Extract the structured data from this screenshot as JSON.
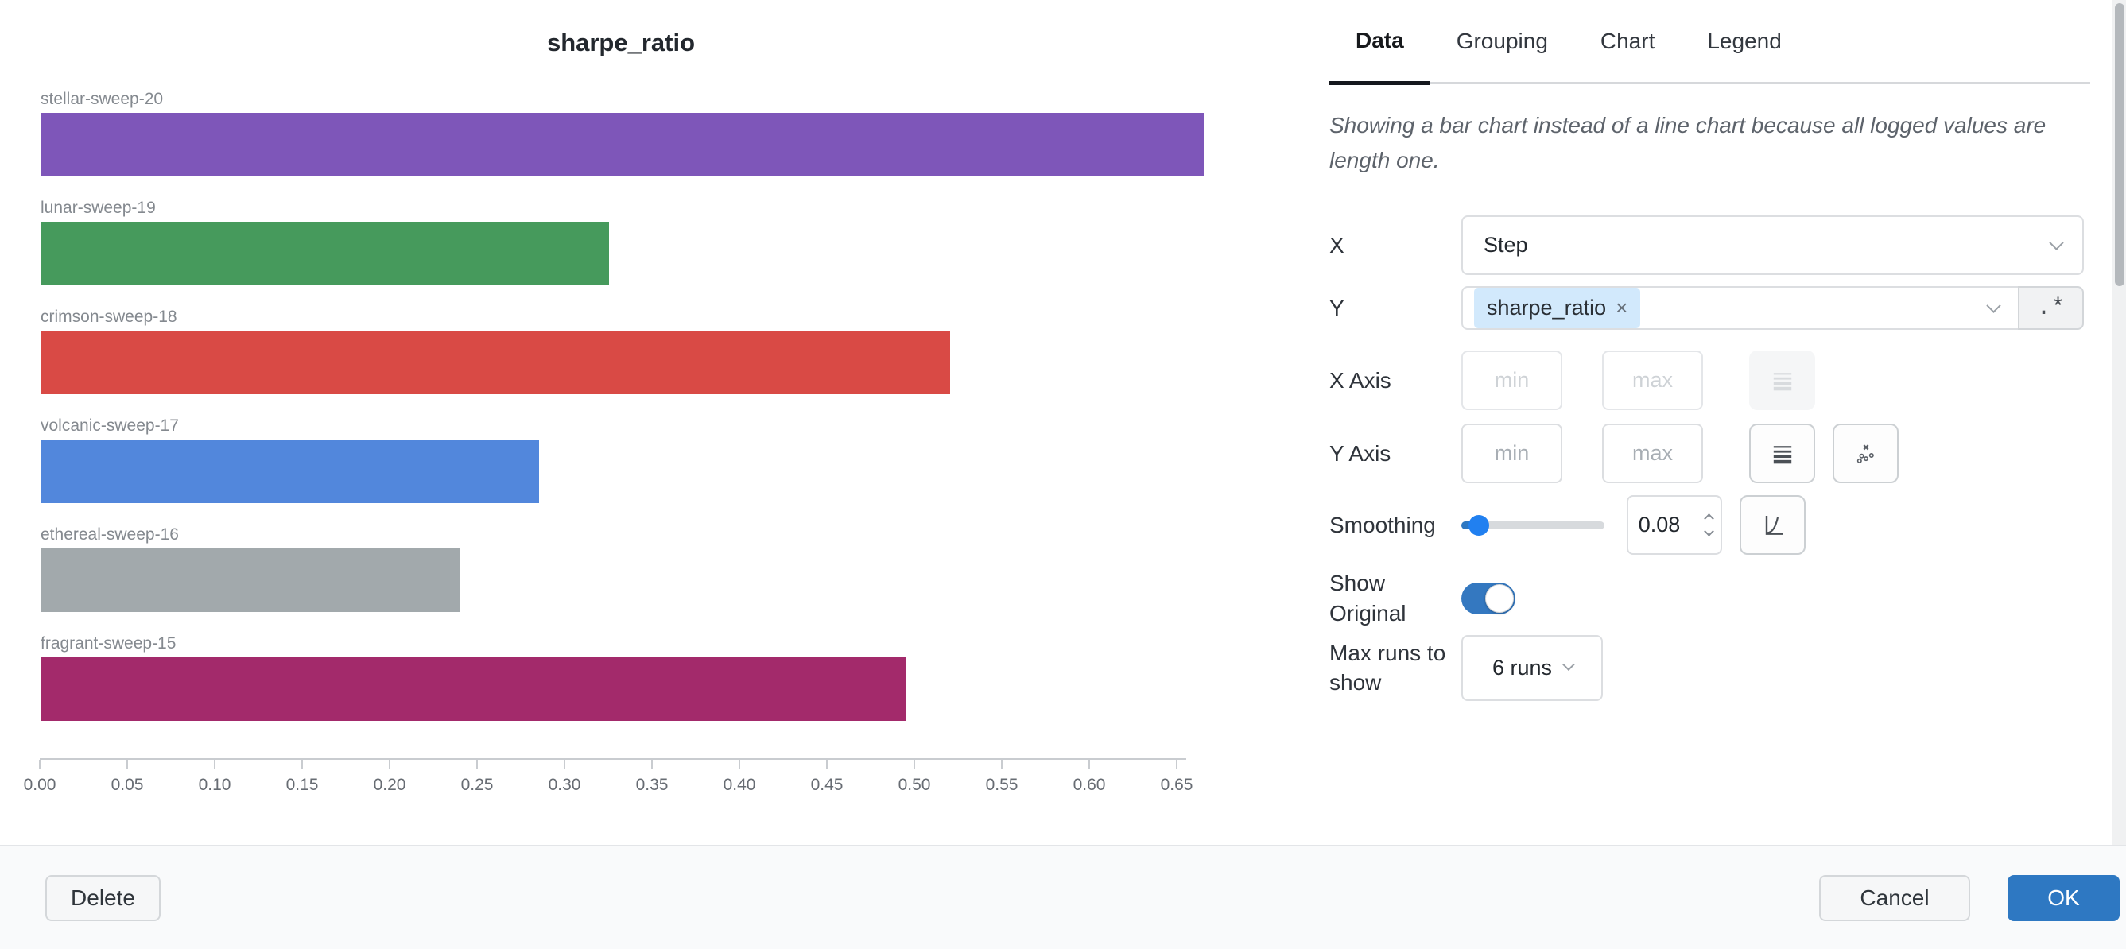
{
  "chart_data": {
    "type": "bar",
    "orientation": "horizontal",
    "title": "sharpe_ratio",
    "categories": [
      "stellar-sweep-20",
      "lunar-sweep-19",
      "crimson-sweep-18",
      "volcanic-sweep-17",
      "ethereal-sweep-16",
      "fragrant-sweep-15"
    ],
    "values": [
      0.665,
      0.325,
      0.52,
      0.285,
      0.24,
      0.495
    ],
    "colors": [
      "#7E56B9",
      "#469A5C",
      "#D94A45",
      "#5287DC",
      "#A2A9AC",
      "#A32A6B"
    ],
    "xlabel": "",
    "ylabel": "",
    "xlim": [
      0,
      0.675
    ],
    "x_ticks": [
      "0.00",
      "0.05",
      "0.10",
      "0.15",
      "0.20",
      "0.25",
      "0.30",
      "0.35",
      "0.40",
      "0.45",
      "0.50",
      "0.55",
      "0.60",
      "0.65"
    ],
    "grid": false,
    "legend": false
  },
  "panel": {
    "tabs": [
      {
        "label": "Data",
        "active": true
      },
      {
        "label": "Grouping",
        "active": false
      },
      {
        "label": "Chart",
        "active": false
      },
      {
        "label": "Legend",
        "active": false
      }
    ],
    "note": "Showing a bar chart instead of a line chart because all logged values are length one.",
    "x_field": {
      "label": "X",
      "value": "Step"
    },
    "y_field": {
      "label": "Y",
      "chip": "sharpe_ratio",
      "chip_remove": "×",
      "regex_button": ".*"
    },
    "x_axis": {
      "label": "X Axis",
      "min_placeholder": "min",
      "max_placeholder": "max"
    },
    "y_axis": {
      "label": "Y Axis",
      "min_placeholder": "min",
      "max_placeholder": "max"
    },
    "smoothing": {
      "label": "Smoothing",
      "value": "0.08"
    },
    "show_original": {
      "label": "Show Original",
      "enabled": true
    },
    "max_runs": {
      "label": "Max runs to show",
      "value": "6 runs"
    }
  },
  "footer": {
    "delete_label": "Delete",
    "cancel_label": "Cancel",
    "ok_label": "OK"
  },
  "colors": {
    "accent_blue": "#2E78C2",
    "slider_thumb": "#2180F0",
    "chip_bg": "#D2E9FC",
    "tab_underline": "#15181D"
  }
}
